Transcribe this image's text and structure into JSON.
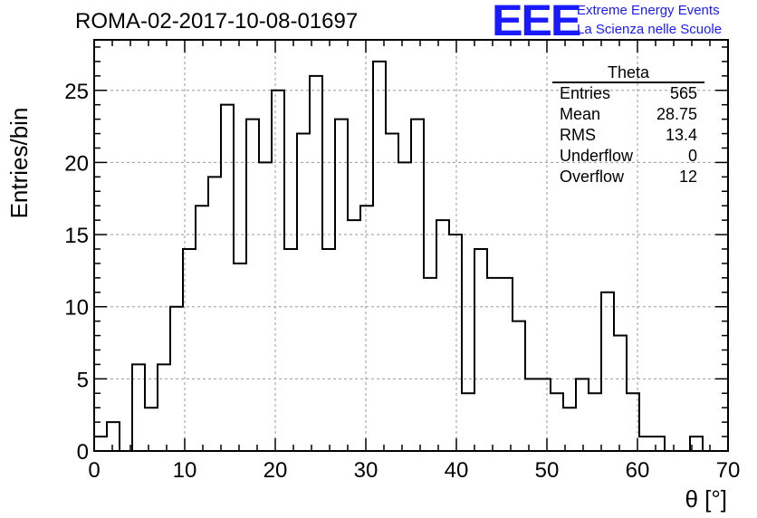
{
  "header": {
    "run_id": "ROMA-02-2017-10-08-01697",
    "logo_mark": "EEE",
    "logo_line1": "Extreme Energy Events",
    "logo_line2": "La Scienza nelle Scuole",
    "brand_color": "#1a1aff"
  },
  "stats_box": {
    "name": "Theta",
    "rows": [
      {
        "label": "Entries",
        "value": "565"
      },
      {
        "label": "Mean",
        "value": "28.75"
      },
      {
        "label": "RMS",
        "value": "13.4"
      },
      {
        "label": "Underflow",
        "value": "0"
      },
      {
        "label": "Overflow",
        "value": "12"
      }
    ]
  },
  "chart_data": {
    "type": "bar",
    "style": "step histogram",
    "xlabel": "θ [°]",
    "ylabel": "Entries/bin",
    "xlim": [
      0,
      70
    ],
    "ylim": [
      0,
      28.5
    ],
    "bin_width": 1.4,
    "x_ticks": [
      0,
      10,
      20,
      30,
      40,
      50,
      60,
      70
    ],
    "y_ticks": [
      0,
      5,
      10,
      15,
      20,
      25
    ],
    "grid": true,
    "line_color": "#000000",
    "values": [
      1,
      2,
      0,
      6,
      3,
      6,
      10,
      14,
      17,
      19,
      24,
      13,
      23,
      20,
      25,
      14,
      22,
      26,
      14,
      23,
      16,
      17,
      27,
      22,
      20,
      23,
      12,
      16,
      15,
      4,
      14,
      12,
      12,
      9,
      5,
      5,
      4,
      3,
      5,
      4,
      11,
      8,
      4,
      1,
      1,
      0,
      0,
      1,
      0,
      0
    ]
  }
}
